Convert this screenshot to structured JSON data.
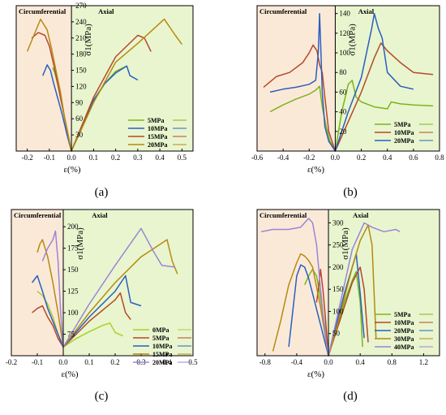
{
  "chart_data": [
    {
      "type": "line",
      "panel_label": "(a)",
      "xlabel": "ε(%)",
      "ylabel": "σ1(MPa)",
      "region_left": "Circumferential",
      "region_right": "Axial",
      "xlim": [
        -0.25,
        0.55
      ],
      "ylim": [
        0,
        270
      ],
      "xticks": [
        -0.2,
        -0.1,
        0.0,
        0.1,
        0.2,
        0.3,
        0.4,
        0.5
      ],
      "xtick_labels": [
        "-0.2",
        "-0.1",
        "0.0",
        "0.1",
        "0.2",
        "0.3",
        "0.4",
        "0.5"
      ],
      "yticks": [
        30,
        60,
        90,
        120,
        150,
        180,
        210,
        240,
        270
      ],
      "ytick_labels": [
        "30",
        "60",
        "90",
        "120",
        "150",
        "180",
        "210",
        "240",
        "270"
      ],
      "series": [
        {
          "name": "5MPa",
          "color": "#7ab51d",
          "x": [
            -0.085,
            -0.075,
            -0.06,
            -0.045,
            -0.03,
            -0.02,
            -0.01,
            0,
            0.05,
            0.1,
            0.15,
            0.2,
            0.25
          ],
          "y": [
            155,
            145,
            120,
            90,
            60,
            40,
            15,
            0,
            45,
            92,
            125,
            148,
            158
          ]
        },
        {
          "name": "10MPa",
          "color": "#2a5fbf",
          "x": [
            -0.13,
            -0.11,
            -0.095,
            -0.08,
            -0.06,
            -0.04,
            -0.02,
            0,
            0.05,
            0.1,
            0.15,
            0.2,
            0.25,
            0.265,
            0.3
          ],
          "y": [
            140,
            160,
            150,
            125,
            95,
            65,
            30,
            0,
            50,
            95,
            125,
            145,
            158,
            140,
            132
          ]
        },
        {
          "name": "15MPa",
          "color": "#b5482a",
          "x": [
            -0.18,
            -0.15,
            -0.12,
            -0.1,
            -0.08,
            -0.06,
            -0.04,
            -0.02,
            0,
            0.1,
            0.2,
            0.3,
            0.33,
            0.36
          ],
          "y": [
            210,
            220,
            215,
            195,
            160,
            120,
            80,
            40,
            0,
            100,
            175,
            215,
            210,
            185
          ]
        },
        {
          "name": "20MPa",
          "color": "#b58a10",
          "x": [
            -0.2,
            -0.17,
            -0.14,
            -0.11,
            -0.09,
            -0.07,
            -0.05,
            -0.03,
            0,
            0.1,
            0.2,
            0.3,
            0.42,
            0.47,
            0.5
          ],
          "y": [
            185,
            215,
            245,
            225,
            190,
            150,
            110,
            60,
            0,
            90,
            165,
            200,
            245,
            215,
            198
          ]
        }
      ]
    },
    {
      "type": "line",
      "panel_label": "(b)",
      "xlabel": "ε(%)",
      "ylabel": "σ1(MPa)",
      "region_left": "Circumferential",
      "region_right": "Axial",
      "xlim": [
        -0.6,
        0.8
      ],
      "ylim": [
        0,
        148
      ],
      "xticks": [
        -0.6,
        -0.4,
        -0.2,
        0.0,
        0.2,
        0.4,
        0.6,
        0.8
      ],
      "xtick_labels": [
        "-0.6",
        "-0.4",
        "-0.2",
        "0.0",
        "0.2",
        "0.4",
        "0.6",
        "0.8"
      ],
      "yticks": [
        20,
        40,
        60,
        80,
        100,
        120,
        140
      ],
      "ytick_labels": [
        "20",
        "40",
        "60",
        "80",
        "100",
        "120",
        "140"
      ],
      "series": [
        {
          "name": "5MPa",
          "color": "#7ab51d",
          "x": [
            -0.5,
            -0.4,
            -0.3,
            -0.2,
            -0.15,
            -0.12,
            -0.1,
            -0.07,
            -0.04,
            0,
            0.05,
            0.1,
            0.13,
            0.16,
            0.2,
            0.3,
            0.4,
            0.43,
            0.5,
            0.6,
            0.75
          ],
          "y": [
            40,
            47,
            53,
            58,
            62,
            66,
            45,
            25,
            10,
            0,
            40,
            68,
            72,
            55,
            50,
            45,
            43,
            50,
            48,
            47,
            46
          ]
        },
        {
          "name": "10MPa",
          "color": "#b5482a",
          "x": [
            -0.55,
            -0.45,
            -0.35,
            -0.25,
            -0.2,
            -0.17,
            -0.14,
            -0.12,
            -0.1,
            -0.08,
            -0.05,
            0,
            0.1,
            0.2,
            0.3,
            0.35,
            0.4,
            0.5,
            0.6,
            0.75
          ],
          "y": [
            65,
            76,
            80,
            90,
            100,
            108,
            102,
            88,
            80,
            55,
            20,
            0,
            30,
            60,
            95,
            110,
            102,
            90,
            80,
            78
          ]
        },
        {
          "name": "20MPa",
          "color": "#2a5fbf",
          "x": [
            -0.5,
            -0.4,
            -0.3,
            -0.2,
            -0.15,
            -0.13,
            -0.12,
            -0.11,
            -0.1,
            -0.08,
            -0.05,
            0,
            0.1,
            0.2,
            0.28,
            0.3,
            0.33,
            0.36,
            0.4,
            0.5,
            0.6
          ],
          "y": [
            60,
            63,
            65,
            68,
            72,
            100,
            140,
            100,
            60,
            25,
            10,
            0,
            40,
            75,
            125,
            140,
            125,
            115,
            80,
            66,
            63
          ]
        }
      ]
    },
    {
      "type": "line",
      "panel_label": "(c)",
      "xlabel": "ε(%)",
      "ylabel": "σ1(MPa)",
      "region_left": "Circumferential",
      "region_right": "Axial",
      "xlim": [
        -0.2,
        0.5
      ],
      "ylim": [
        50,
        220
      ],
      "xticks": [
        -0.2,
        -0.1,
        0.0,
        0.1,
        0.2,
        0.3,
        0.4,
        0.5
      ],
      "xtick_labels": [
        "-0.2",
        "-0.1",
        "0.0",
        "0.1",
        "0.2",
        "0.3",
        "0.4",
        "0.5"
      ],
      "yticks": [
        75,
        100,
        125,
        150,
        175,
        200
      ],
      "ytick_labels": [
        "75",
        "100",
        "125",
        "150",
        "175",
        "200"
      ],
      "series": [
        {
          "name": "0MPa",
          "color": "#a7d12a",
          "x": [
            -0.1,
            -0.08,
            -0.06,
            -0.04,
            -0.02,
            0,
            0.05,
            0.1,
            0.15,
            0.18,
            0.2,
            0.23
          ],
          "y": [
            125,
            120,
            110,
            95,
            75,
            60,
            70,
            78,
            85,
            88,
            77,
            73
          ]
        },
        {
          "name": "5MPa",
          "color": "#b5482a",
          "x": [
            -0.12,
            -0.1,
            -0.08,
            -0.06,
            -0.04,
            -0.02,
            0,
            0.1,
            0.2,
            0.22,
            0.24,
            0.26
          ],
          "y": [
            100,
            105,
            108,
            95,
            85,
            70,
            60,
            90,
            115,
            123,
            100,
            92
          ]
        },
        {
          "name": "10MPa",
          "color": "#2a5fbf",
          "x": [
            -0.12,
            -0.1,
            -0.08,
            -0.06,
            -0.04,
            -0.02,
            0,
            0.1,
            0.2,
            0.24,
            0.26,
            0.3
          ],
          "y": [
            135,
            143,
            125,
            105,
            90,
            75,
            60,
            95,
            125,
            143,
            112,
            108
          ]
        },
        {
          "name": "15MPa",
          "color": "#b58a10",
          "x": [
            -0.1,
            -0.09,
            -0.08,
            -0.06,
            -0.04,
            -0.02,
            0,
            0.1,
            0.2,
            0.3,
            0.4,
            0.42,
            0.44
          ],
          "y": [
            170,
            180,
            185,
            165,
            135,
            100,
            60,
            100,
            135,
            165,
            185,
            160,
            145
          ]
        },
        {
          "name": "20MPa",
          "color": "#9b85d6",
          "x": [
            -0.08,
            -0.06,
            -0.04,
            -0.03,
            -0.02,
            -0.01,
            0,
            0.1,
            0.2,
            0.3,
            0.35,
            0.38,
            0.43
          ],
          "y": [
            160,
            175,
            185,
            195,
            160,
            100,
            60,
            110,
            155,
            198,
            170,
            155,
            153
          ]
        }
      ]
    },
    {
      "type": "line",
      "panel_label": "(d)",
      "xlabel": "ε(%)",
      "ylabel": "σ1(MPa)",
      "region_left": "Circumferential",
      "region_right": "Axial",
      "xlim": [
        -0.9,
        1.4
      ],
      "ylim": [
        0,
        330
      ],
      "xticks": [
        -0.8,
        -0.4,
        0.0,
        0.4,
        0.8,
        1.2
      ],
      "xtick_labels": [
        "-0.8",
        "-0.4",
        "0.0",
        "0.4",
        "0.8",
        "1.2"
      ],
      "yticks": [
        50,
        100,
        150,
        200,
        250,
        300
      ],
      "ytick_labels": [
        "50",
        "100",
        "150",
        "200",
        "250",
        "300"
      ],
      "series": [
        {
          "name": "5MPa",
          "color": "#7ab51d",
          "x": [
            -0.3,
            -0.25,
            -0.2,
            -0.15,
            -0.1,
            -0.05,
            0,
            0.1,
            0.2,
            0.3,
            0.35,
            0.4,
            0.43
          ],
          "y": [
            160,
            180,
            195,
            180,
            130,
            70,
            0,
            60,
            120,
            170,
            190,
            120,
            20
          ]
        },
        {
          "name": "10MPa",
          "color": "#b5482a",
          "x": [
            -0.15,
            -0.12,
            -0.1,
            -0.07,
            -0.04,
            0,
            0.1,
            0.2,
            0.3,
            0.4,
            0.45,
            0.5
          ],
          "y": [
            120,
            160,
            195,
            150,
            90,
            0,
            55,
            110,
            165,
            200,
            150,
            30
          ]
        },
        {
          "name": "20MPa",
          "color": "#2a5fbf",
          "x": [
            -0.5,
            -0.45,
            -0.4,
            -0.35,
            -0.3,
            -0.25,
            -0.2,
            -0.1,
            0,
            0.1,
            0.2,
            0.3,
            0.35,
            0.4,
            0.45
          ],
          "y": [
            20,
            100,
            180,
            205,
            200,
            175,
            140,
            70,
            0,
            70,
            140,
            200,
            230,
            140,
            40
          ]
        },
        {
          "name": "30MPa",
          "color": "#b58a10",
          "x": [
            -0.7,
            -0.6,
            -0.5,
            -0.4,
            -0.35,
            -0.3,
            -0.25,
            -0.2,
            -0.1,
            0,
            0.1,
            0.2,
            0.3,
            0.4,
            0.5,
            0.55,
            0.6
          ],
          "y": [
            10,
            80,
            160,
            210,
            230,
            225,
            215,
            200,
            110,
            0,
            60,
            130,
            200,
            260,
            295,
            250,
            40
          ]
        },
        {
          "name": "40MPa",
          "color": "#9b85d6",
          "x": [
            -0.85,
            -0.7,
            -0.5,
            -0.35,
            -0.25,
            -0.2,
            -0.15,
            -0.1,
            -0.05,
            0,
            0.1,
            0.2,
            0.3,
            0.45,
            0.55,
            0.7,
            0.85,
            0.9
          ],
          "y": [
            280,
            285,
            285,
            290,
            310,
            300,
            250,
            150,
            60,
            0,
            80,
            160,
            240,
            300,
            290,
            280,
            285,
            280
          ]
        }
      ]
    }
  ]
}
